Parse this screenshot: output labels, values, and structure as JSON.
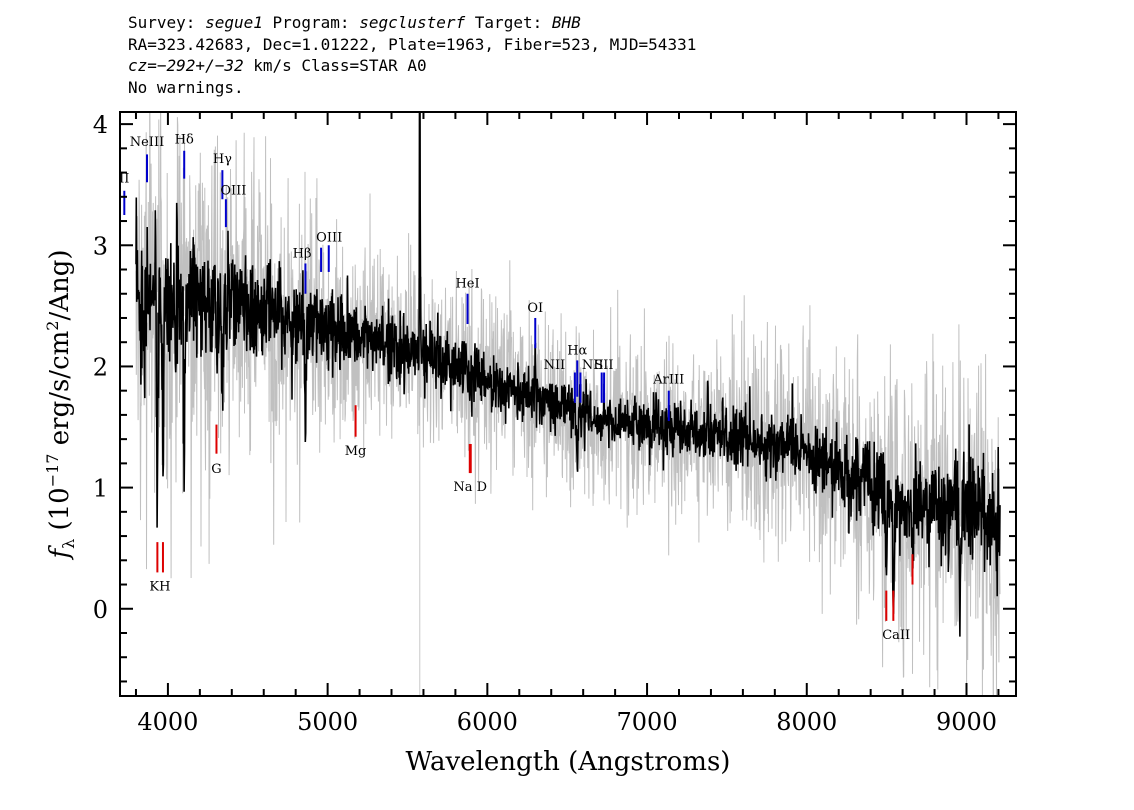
{
  "header": {
    "line1": {
      "survey_label": "Survey: ",
      "survey": "segue1",
      "program_label": " Program: ",
      "program": "segclusterf",
      "target_label": " Target: ",
      "target": "BHB"
    },
    "line2": "RA=323.42683, Dec=1.01222, Plate=1963, Fiber=523, MJD=54331",
    "line3": {
      "cz": "cz=−292+/−32",
      "rest": " km/s Class=STAR A0"
    },
    "line4": "No warnings."
  },
  "chart_data": {
    "type": "line",
    "xlabel": "Wavelength (Angstroms)",
    "ylabel_prefix": "f",
    "ylabel_sub": "λ",
    "ylabel_main": " (10",
    "ylabel_exp": "−17",
    "ylabel_unit": " erg/s/cm",
    "ylabel_unit_exp": "2",
    "ylabel_tail": "/Ang)",
    "xlim": [
      3700,
      9310
    ],
    "ylim": [
      -0.72,
      4.1
    ],
    "x_ticks": [
      4000,
      5000,
      6000,
      7000,
      8000,
      9000
    ],
    "y_ticks": [
      0,
      1,
      2,
      3,
      4
    ],
    "x_tick_labels": [
      "4000",
      "5000",
      "6000",
      "7000",
      "8000",
      "9000"
    ],
    "y_tick_labels": [
      "0",
      "1",
      "2",
      "3",
      "4"
    ],
    "sky_line_x": 5577,
    "spectrum_range": [
      3800,
      9210
    ],
    "series": [
      {
        "role": "flux",
        "color": "#000000",
        "x": [
          3800,
          3900,
          4000,
          4100,
          4200,
          4300,
          4400,
          4500,
          4600,
          4700,
          4800,
          4900,
          5000,
          5200,
          5400,
          5600,
          5800,
          6000,
          6200,
          6400,
          6600,
          6800,
          7000,
          7200,
          7400,
          7600,
          7800,
          8000,
          8200,
          8400,
          8600,
          8800,
          9000,
          9200
        ],
        "y": [
          2.5,
          2.6,
          2.55,
          2.6,
          2.55,
          2.5,
          2.5,
          2.45,
          2.45,
          2.4,
          2.35,
          2.35,
          2.3,
          2.25,
          2.15,
          2.1,
          2.0,
          1.9,
          1.8,
          1.7,
          1.6,
          1.55,
          1.5,
          1.45,
          1.45,
          1.4,
          1.35,
          1.3,
          1.15,
          1.0,
          0.9,
          0.85,
          0.85,
          0.7
        ]
      },
      {
        "role": "error",
        "color": "#c0c0c0",
        "x": [
          3800,
          4000,
          4200,
          4400,
          4600,
          4800,
          5000,
          5400,
          5800,
          6200,
          6600,
          7000,
          7400,
          7800,
          8200,
          8600,
          9000,
          9200
        ],
        "y": [
          0.7,
          0.65,
          0.55,
          0.5,
          0.45,
          0.4,
          0.35,
          0.3,
          0.3,
          0.25,
          0.25,
          0.25,
          0.25,
          0.3,
          0.35,
          0.45,
          0.5,
          0.55
        ]
      }
    ],
    "emission_lines": [
      {
        "name": "OII",
        "x": 3727,
        "y1": 3.25,
        "y2": 3.45,
        "label_y": 3.52
      },
      {
        "name": "NeIII",
        "x": 3869,
        "y1": 3.52,
        "y2": 3.75,
        "label_y": 3.82
      },
      {
        "name": "Hδ",
        "x": 4102,
        "y1": 3.55,
        "y2": 3.78,
        "label_y": 3.84
      },
      {
        "name": "Hγ",
        "x": 4341,
        "y1": 3.38,
        "y2": 3.62,
        "label_y": 3.68
      },
      {
        "name": "OIII",
        "x": 4363,
        "y1": 3.15,
        "y2": 3.38,
        "label_y": 3.42
      },
      {
        "name": "Hβ",
        "x": 4861,
        "y1": 2.6,
        "y2": 2.85,
        "label_y": 2.9
      },
      {
        "name": "OIII",
        "x": 4959,
        "y1": 2.78,
        "y2": 2.98,
        "label_y": 3.03
      },
      {
        "name": "OIII",
        "x": 5007,
        "y1": 2.78,
        "y2": 3.0,
        "label_y": 3.03
      },
      {
        "name": "HeI",
        "x": 5876,
        "y1": 2.35,
        "y2": 2.6,
        "label_y": 2.65
      },
      {
        "name": "OI",
        "x": 6300,
        "y1": 2.15,
        "y2": 2.4,
        "label_y": 2.45
      },
      {
        "name": "NII",
        "x": 6548,
        "y1": 1.7,
        "y2": 1.95,
        "label_y": 1.98
      },
      {
        "name": "Hα",
        "x": 6563,
        "y1": 1.75,
        "y2": 2.05,
        "label_y": 2.1
      },
      {
        "name": "NII",
        "x": 6583,
        "y1": 1.7,
        "y2": 1.95,
        "label_y": 1.98
      },
      {
        "name": "SII",
        "x": 6716,
        "y1": 1.7,
        "y2": 1.95,
        "label_y": 1.98
      },
      {
        "name": "SII",
        "x": 6731,
        "y1": 1.7,
        "y2": 1.95,
        "label_y": 1.98
      },
      {
        "name": "ArIII",
        "x": 7136,
        "y1": 1.55,
        "y2": 1.8,
        "label_y": 1.86
      }
    ],
    "absorption_lines": [
      {
        "name": "K",
        "x": 3934,
        "y1": 0.3,
        "y2": 0.55,
        "label_y": 0.15
      },
      {
        "name": "H",
        "x": 3969,
        "y1": 0.3,
        "y2": 0.55,
        "label_y": 0.15
      },
      {
        "name": "G",
        "x": 4304,
        "y1": 1.28,
        "y2": 1.52,
        "label_y": 1.12
      },
      {
        "name": "Mg",
        "x": 5175,
        "y1": 1.42,
        "y2": 1.68,
        "label_y": 1.27
      },
      {
        "name": "Na",
        "x": 5890,
        "y1": 1.12,
        "y2": 1.36,
        "label_y": 0.97
      },
      {
        "name": "D",
        "x": 5896,
        "y1": 1.12,
        "y2": 1.36,
        "label_y": 0.97
      },
      {
        "name": "CaII",
        "x": 8498,
        "y1": -0.1,
        "y2": 0.15,
        "label_y": -0.25
      },
      {
        "name": "CaII",
        "x": 8542,
        "y1": -0.1,
        "y2": 0.15,
        "label_y": -0.25
      },
      {
        "name": "CaII",
        "x": 8662,
        "y1": 0.2,
        "y2": 0.45,
        "label_y": -0.25
      }
    ],
    "line_labels": [
      {
        "text": "II",
        "x": 3727,
        "label_y": 3.52,
        "color": "blue"
      },
      {
        "text": "NeIII",
        "x": 3869,
        "label_y": 3.82,
        "color": "blue"
      },
      {
        "text": "Hδ",
        "x": 4102,
        "label_y": 3.84,
        "color": "blue"
      },
      {
        "text": "Hγ",
        "x": 4341,
        "label_y": 3.68,
        "color": "blue"
      },
      {
        "text": "OIII",
        "x": 4410,
        "label_y": 3.42,
        "color": "blue"
      },
      {
        "text": "Hβ",
        "x": 4840,
        "label_y": 2.9,
        "color": "blue"
      },
      {
        "text": "OIII",
        "x": 5010,
        "label_y": 3.03,
        "color": "blue"
      },
      {
        "text": "HeI",
        "x": 5876,
        "label_y": 2.65,
        "color": "blue"
      },
      {
        "text": "OI",
        "x": 6300,
        "label_y": 2.45,
        "color": "blue"
      },
      {
        "text": "NII",
        "x": 6420,
        "label_y": 1.98,
        "color": "blue"
      },
      {
        "text": "Hα",
        "x": 6563,
        "label_y": 2.1,
        "color": "blue"
      },
      {
        "text": "NII",
        "x": 6660,
        "label_y": 1.98,
        "color": "blue"
      },
      {
        "text": "SII",
        "x": 6730,
        "label_y": 1.98,
        "color": "blue"
      },
      {
        "text": "ArIII",
        "x": 7136,
        "label_y": 1.86,
        "color": "blue"
      },
      {
        "text": "KH",
        "x": 3950,
        "label_y": 0.15,
        "color": "red"
      },
      {
        "text": "G",
        "x": 4304,
        "label_y": 1.12,
        "color": "red"
      },
      {
        "text": "Mg",
        "x": 5175,
        "label_y": 1.27,
        "color": "red"
      },
      {
        "text": "Na  D",
        "x": 5893,
        "label_y": 0.97,
        "color": "red"
      },
      {
        "text": "CaII",
        "x": 8560,
        "label_y": -0.25,
        "color": "red"
      }
    ]
  },
  "colors": {
    "emission": "#0000cc",
    "absorption": "#dd0000",
    "flux": "#000000",
    "error": "#c0c0c0"
  }
}
